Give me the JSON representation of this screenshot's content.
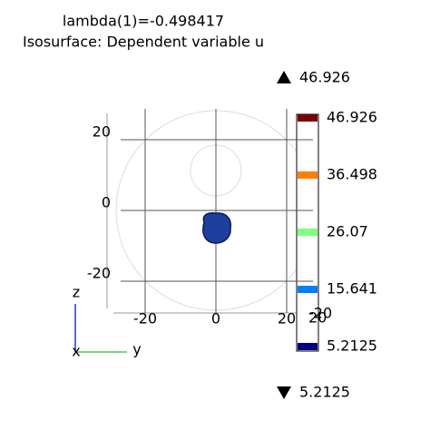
{
  "chart_data": {
    "type": "isosurface",
    "title": "lambda(1)=-0.498417",
    "subtitle": "Isosurface: Dependent variable u",
    "color_max": 46.926,
    "color_min": 5.2125,
    "levels": [
      {
        "value": 46.926,
        "color": "#7a0000"
      },
      {
        "value": 36.498,
        "color": "#ff7f00"
      },
      {
        "value": 26.07,
        "color": "#80ff80"
      },
      {
        "value": 15.641,
        "color": "#0080ff"
      },
      {
        "value": 5.2125,
        "color": "#000080"
      }
    ],
    "surface_color": "#1f3f9f",
    "yticks": [
      -20,
      0,
      20
    ],
    "zticks": [
      -20,
      0,
      20
    ],
    "xticks": [
      -20,
      20
    ],
    "x_label": "x",
    "y_label": "y",
    "z_label": "z"
  }
}
